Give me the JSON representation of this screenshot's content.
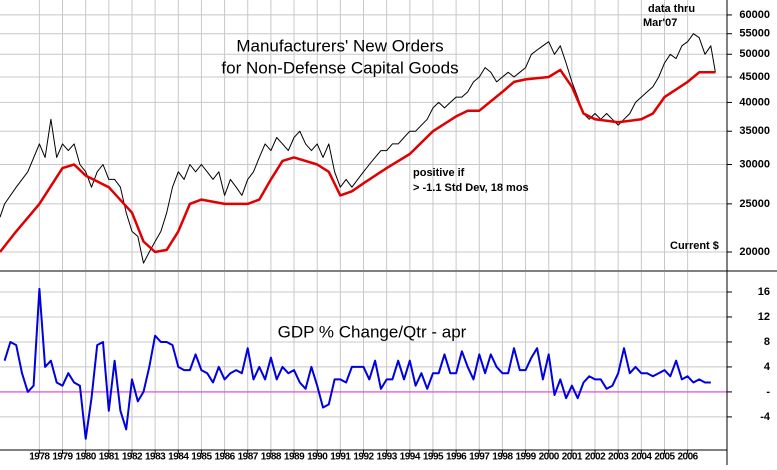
{
  "chart_data": [
    {
      "type": "line",
      "title": [
        "Manufacturers' New Orders",
        "for Non-Defense Capital Goods"
      ],
      "annotations": [
        "data thru",
        "Mar'07",
        "positive if",
        "> -1.1 Std Dev, 18 mos",
        "Current $"
      ],
      "log_scale": true,
      "grid": true,
      "xlim": [
        1976.3,
        2007.7
      ],
      "ylim": [
        18400,
        64300
      ],
      "yticks": [
        20000,
        25000,
        30000,
        35000,
        40000,
        45000,
        50000,
        55000,
        60000
      ],
      "series": [
        {
          "color": "#000000",
          "x": [
            1976.3,
            1976.5,
            1977,
            1977.5,
            1978,
            1978.25,
            1978.5,
            1978.75,
            1979,
            1979.25,
            1979.5,
            1979.75,
            1980,
            1980.25,
            1980.5,
            1980.75,
            1981,
            1981.25,
            1981.5,
            1981.75,
            1982,
            1982.25,
            1982.5,
            1982.75,
            1983,
            1983.25,
            1983.5,
            1983.75,
            1984,
            1984.25,
            1984.5,
            1984.75,
            1985,
            1985.25,
            1985.5,
            1985.75,
            1986,
            1986.25,
            1986.5,
            1986.75,
            1987,
            1987.25,
            1987.5,
            1987.75,
            1988,
            1988.25,
            1988.5,
            1988.75,
            1989,
            1989.25,
            1989.5,
            1989.75,
            1990,
            1990.25,
            1990.5,
            1990.75,
            1991,
            1991.25,
            1991.5,
            1991.75,
            1992,
            1992.25,
            1992.5,
            1992.75,
            1993,
            1993.25,
            1993.5,
            1993.75,
            1994,
            1994.25,
            1994.5,
            1994.75,
            1995,
            1995.25,
            1995.5,
            1995.75,
            1996,
            1996.25,
            1996.5,
            1996.75,
            1997,
            1997.25,
            1997.5,
            1997.75,
            1998,
            1998.25,
            1998.5,
            1998.75,
            1999,
            1999.25,
            1999.5,
            1999.75,
            2000,
            2000.25,
            2000.5,
            2000.75,
            2001,
            2001.25,
            2001.5,
            2001.75,
            2002,
            2002.25,
            2002.5,
            2002.75,
            2003,
            2003.25,
            2003.5,
            2003.75,
            2004,
            2004.25,
            2004.5,
            2004.75,
            2005,
            2005.25,
            2005.5,
            2005.75,
            2006,
            2006.25,
            2006.5,
            2006.75,
            2007,
            2007.2
          ],
          "values": [
            23500,
            25000,
            27000,
            29000,
            33000,
            31000,
            37000,
            31000,
            33000,
            32000,
            33000,
            30000,
            29000,
            27000,
            29000,
            30000,
            28000,
            28000,
            27000,
            24000,
            22000,
            21500,
            19000,
            20000,
            21000,
            22000,
            24000,
            27000,
            29000,
            28000,
            30000,
            29000,
            30000,
            29000,
            28000,
            29000,
            26000,
            28000,
            27000,
            26000,
            28000,
            29000,
            31000,
            33000,
            32000,
            34000,
            33000,
            32000,
            34000,
            35000,
            33000,
            32000,
            33000,
            31000,
            33000,
            29000,
            27000,
            28000,
            27000,
            28000,
            29000,
            30000,
            31000,
            32000,
            32000,
            33000,
            33000,
            34000,
            35000,
            35000,
            36000,
            37000,
            39000,
            40000,
            39000,
            40000,
            41000,
            41000,
            42000,
            44000,
            45000,
            47000,
            46000,
            44000,
            45000,
            46000,
            45000,
            46000,
            47000,
            50000,
            51000,
            52000,
            53000,
            50000,
            52000,
            48000,
            44000,
            41000,
            38000,
            37000,
            38000,
            37000,
            38000,
            37000,
            36000,
            37000,
            38000,
            40000,
            41000,
            42000,
            43000,
            45000,
            48000,
            50000,
            49000,
            52000,
            53000,
            55000,
            54000,
            50000,
            52000,
            46000
          ]
        },
        {
          "color": "#e00000",
          "x": [
            1976.3,
            1977,
            1978,
            1979,
            1979.5,
            1980,
            1981,
            1982,
            1982.5,
            1983,
            1983.5,
            1984,
            1984.5,
            1985,
            1986,
            1987,
            1987.5,
            1988,
            1988.5,
            1989,
            1990,
            1990.5,
            1991,
            1991.5,
            1992,
            1993,
            1994,
            1995,
            1996,
            1996.5,
            1997,
            1998,
            1998.5,
            1999,
            2000,
            2000.5,
            2001,
            2001.5,
            2002,
            2003,
            2004,
            2004.5,
            2005,
            2006,
            2006.5,
            2007.2
          ],
          "values": [
            20000,
            22000,
            25000,
            29500,
            30000,
            28500,
            27000,
            24000,
            21000,
            20000,
            20200,
            22000,
            25000,
            25500,
            25000,
            25000,
            25500,
            28000,
            30500,
            31000,
            30000,
            29000,
            26000,
            26500,
            27500,
            29500,
            31500,
            35000,
            37500,
            38500,
            38500,
            42000,
            44000,
            44500,
            45000,
            46500,
            43000,
            38000,
            37000,
            36500,
            37000,
            38000,
            41000,
            44000,
            46000,
            46000
          ]
        }
      ]
    },
    {
      "type": "line",
      "title": "GDP % Change/Qtr - apr",
      "grid": true,
      "zero_line_color": "#e040e0",
      "xlim": [
        1976.3,
        2007.7
      ],
      "xticks": [
        1978,
        1979,
        1980,
        1981,
        1982,
        1983,
        1984,
        1985,
        1986,
        1987,
        1988,
        1989,
        1990,
        1991,
        1992,
        1993,
        1994,
        1995,
        1996,
        1997,
        1998,
        1999,
        2000,
        2001,
        2002,
        2003,
        2004,
        2005,
        2006
      ],
      "ylim": [
        -9.3,
        19.2
      ],
      "yticks": [
        16,
        12,
        8,
        4,
        {
          "value": 0,
          "label": "-"
        },
        -4
      ],
      "series": [
        {
          "color": "#0000e0",
          "x": [
            1976.5,
            1976.75,
            1977,
            1977.25,
            1977.5,
            1977.75,
            1978,
            1978.25,
            1978.5,
            1978.75,
            1979,
            1979.25,
            1979.5,
            1979.75,
            1980,
            1980.25,
            1980.5,
            1980.75,
            1981,
            1981.25,
            1981.5,
            1981.75,
            1982,
            1982.25,
            1982.5,
            1982.75,
            1983,
            1983.25,
            1983.5,
            1983.75,
            1984,
            1984.25,
            1984.5,
            1984.75,
            1985,
            1985.25,
            1985.5,
            1985.75,
            1986,
            1986.25,
            1986.5,
            1986.75,
            1987,
            1987.25,
            1987.5,
            1987.75,
            1988,
            1988.25,
            1988.5,
            1988.75,
            1989,
            1989.25,
            1989.5,
            1989.75,
            1990,
            1990.25,
            1990.5,
            1990.75,
            1991,
            1991.25,
            1991.5,
            1991.75,
            1992,
            1992.25,
            1992.5,
            1992.75,
            1993,
            1993.25,
            1993.5,
            1993.75,
            1994,
            1994.25,
            1994.5,
            1994.75,
            1995,
            1995.25,
            1995.5,
            1995.75,
            1996,
            1996.25,
            1996.5,
            1996.75,
            1997,
            1997.25,
            1997.5,
            1997.75,
            1998,
            1998.25,
            1998.5,
            1998.75,
            1999,
            1999.25,
            1999.5,
            1999.75,
            2000,
            2000.25,
            2000.5,
            2000.75,
            2001,
            2001.25,
            2001.5,
            2001.75,
            2002,
            2002.25,
            2002.5,
            2002.75,
            2003,
            2003.25,
            2003.5,
            2003.75,
            2004,
            2004.25,
            2004.5,
            2004.75,
            2005,
            2005.25,
            2005.5,
            2005.75,
            2006,
            2006.25,
            2006.5,
            2006.75,
            2007
          ],
          "values": [
            5,
            8,
            7.5,
            3,
            0,
            1,
            16.5,
            4,
            5,
            1.5,
            1,
            3,
            1.5,
            1,
            -7.5,
            -1,
            7.5,
            8,
            -3,
            5,
            -3,
            -6,
            2,
            -1.5,
            0,
            4,
            9,
            8,
            8,
            7.5,
            4,
            3.5,
            3.5,
            6,
            3.5,
            3,
            1.5,
            4,
            2,
            3,
            3.5,
            3,
            7,
            2,
            4,
            2,
            5.5,
            2,
            4,
            3,
            3.5,
            1.5,
            0.5,
            4,
            1,
            -2.5,
            -2,
            2,
            2,
            1.5,
            4,
            4,
            4,
            2,
            5,
            0.5,
            2,
            2,
            5,
            2,
            5,
            1,
            3,
            0.5,
            3,
            3,
            6,
            3,
            3,
            6.5,
            4,
            2,
            6,
            3,
            6,
            4,
            3,
            3,
            7,
            3.5,
            3.5,
            5.5,
            7,
            2,
            6,
            -0.5,
            2,
            -1,
            1,
            -1,
            1.5,
            2.5,
            2,
            2,
            0.5,
            1,
            3,
            7,
            3,
            4,
            3,
            3,
            2.5,
            3,
            3.5,
            2.5,
            5,
            2,
            2.5,
            1.5,
            2,
            1.5,
            1.5
          ]
        }
      ]
    }
  ]
}
